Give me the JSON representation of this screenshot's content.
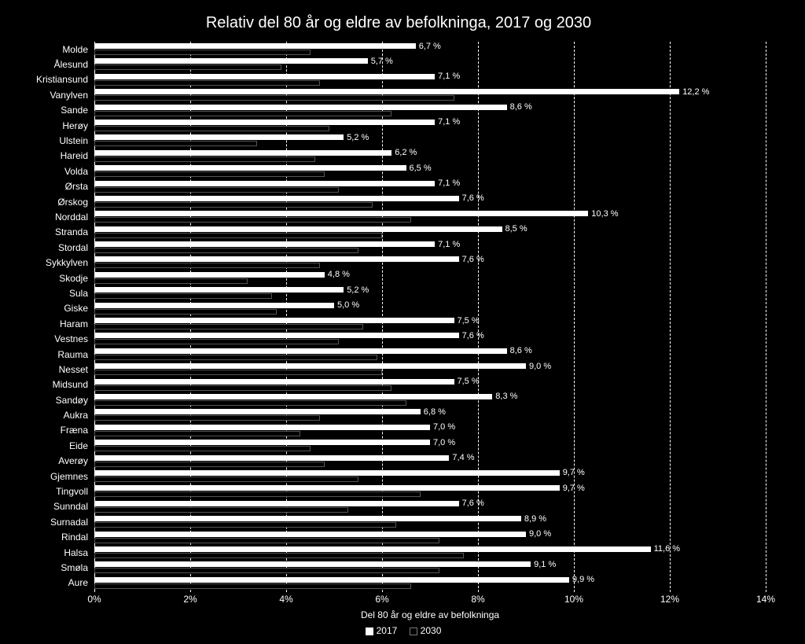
{
  "chart": {
    "type": "bar-horizontal-grouped",
    "title": "Relativ del 80 år og eldre av befolkninga, 2017 og 2030",
    "title_fontsize": 20,
    "background_color": "#000000",
    "bar_color_2017": "#ffffff",
    "bar_color_2030": "#000000",
    "text_color": "#ffffff",
    "grid_color": "#ffffff",
    "grid_style": "dashed",
    "label_fontsize": 12,
    "value_fontsize": 11,
    "x_label": "Del 80 år og eldre av befolkninga",
    "x_min": 0,
    "x_max": 14,
    "x_tick_step": 2,
    "x_ticks": [
      "0%",
      "2%",
      "4%",
      "6%",
      "8%",
      "10%",
      "12%",
      "14%"
    ],
    "legend": {
      "s2017": "2017",
      "s2030": "2030"
    },
    "categories": [
      {
        "name": "Molde",
        "v2017": 6.7,
        "label": "6,7 %",
        "v2030": 4.5
      },
      {
        "name": "Ålesund",
        "v2017": 5.7,
        "label": "5,7 %",
        "v2030": 3.9
      },
      {
        "name": "Kristiansund",
        "v2017": 7.1,
        "label": "7,1 %",
        "v2030": 4.7
      },
      {
        "name": "Vanylven",
        "v2017": 12.2,
        "label": "12,2 %",
        "v2030": 7.5
      },
      {
        "name": "Sande",
        "v2017": 8.6,
        "label": "8,6 %",
        "v2030": 6.2
      },
      {
        "name": "Herøy",
        "v2017": 7.1,
        "label": "7,1 %",
        "v2030": 4.9
      },
      {
        "name": "Ulstein",
        "v2017": 5.2,
        "label": "5,2 %",
        "v2030": 3.4
      },
      {
        "name": "Hareid",
        "v2017": 6.2,
        "label": "6,2 %",
        "v2030": 4.6
      },
      {
        "name": "Volda",
        "v2017": 6.5,
        "label": "6,5 %",
        "v2030": 4.8
      },
      {
        "name": "Ørsta",
        "v2017": 7.1,
        "label": "7,1 %",
        "v2030": 5.1
      },
      {
        "name": "Ørskog",
        "v2017": 7.6,
        "label": "7,6 %",
        "v2030": 5.8
      },
      {
        "name": "Norddal",
        "v2017": 10.3,
        "label": "10,3 %",
        "v2030": 6.6
      },
      {
        "name": "Stranda",
        "v2017": 8.5,
        "label": "8,5 %",
        "v2030": 6.0
      },
      {
        "name": "Stordal",
        "v2017": 7.1,
        "label": "7,1 %",
        "v2030": 5.5
      },
      {
        "name": "Sykkylven",
        "v2017": 7.6,
        "label": "7,6 %",
        "v2030": 4.7
      },
      {
        "name": "Skodje",
        "v2017": 4.8,
        "label": "4,8 %",
        "v2030": 3.2
      },
      {
        "name": "Sula",
        "v2017": 5.2,
        "label": "5,2 %",
        "v2030": 3.7
      },
      {
        "name": "Giske",
        "v2017": 5.0,
        "label": "5,0 %",
        "v2030": 3.8
      },
      {
        "name": "Haram",
        "v2017": 7.5,
        "label": "7,5 %",
        "v2030": 5.6
      },
      {
        "name": "Vestnes",
        "v2017": 7.6,
        "label": "7,6 %",
        "v2030": 5.1
      },
      {
        "name": "Rauma",
        "v2017": 8.6,
        "label": "8,6 %",
        "v2030": 5.9
      },
      {
        "name": "Nesset",
        "v2017": 9.0,
        "label": "9,0 %",
        "v2030": 6.0
      },
      {
        "name": "Midsund",
        "v2017": 7.5,
        "label": "7,5 %",
        "v2030": 6.2
      },
      {
        "name": "Sandøy",
        "v2017": 8.3,
        "label": "8,3 %",
        "v2030": 6.5
      },
      {
        "name": "Aukra",
        "v2017": 6.8,
        "label": "6,8 %",
        "v2030": 4.7
      },
      {
        "name": "Fræna",
        "v2017": 7.0,
        "label": "7,0 %",
        "v2030": 4.3
      },
      {
        "name": "Eide",
        "v2017": 7.0,
        "label": "7,0 %",
        "v2030": 4.5
      },
      {
        "name": "Averøy",
        "v2017": 7.4,
        "label": "7,4 %",
        "v2030": 4.8
      },
      {
        "name": "Gjemnes",
        "v2017": 9.7,
        "label": "9,7 %",
        "v2030": 5.5
      },
      {
        "name": "Tingvoll",
        "v2017": 9.7,
        "label": "9,7 %",
        "v2030": 6.8
      },
      {
        "name": "Sunndal",
        "v2017": 7.6,
        "label": "7,6 %",
        "v2030": 5.3
      },
      {
        "name": "Surnadal",
        "v2017": 8.9,
        "label": "8,9 %",
        "v2030": 6.3
      },
      {
        "name": "Rindal",
        "v2017": 9.0,
        "label": "9,0 %",
        "v2030": 7.2
      },
      {
        "name": "Halsa",
        "v2017": 11.6,
        "label": "11,6 %",
        "v2030": 7.7
      },
      {
        "name": "Smøla",
        "v2017": 9.1,
        "label": "9,1 %",
        "v2030": 7.2
      },
      {
        "name": "Aure",
        "v2017": 9.9,
        "label": "9,9 %",
        "v2030": 6.6
      }
    ]
  }
}
